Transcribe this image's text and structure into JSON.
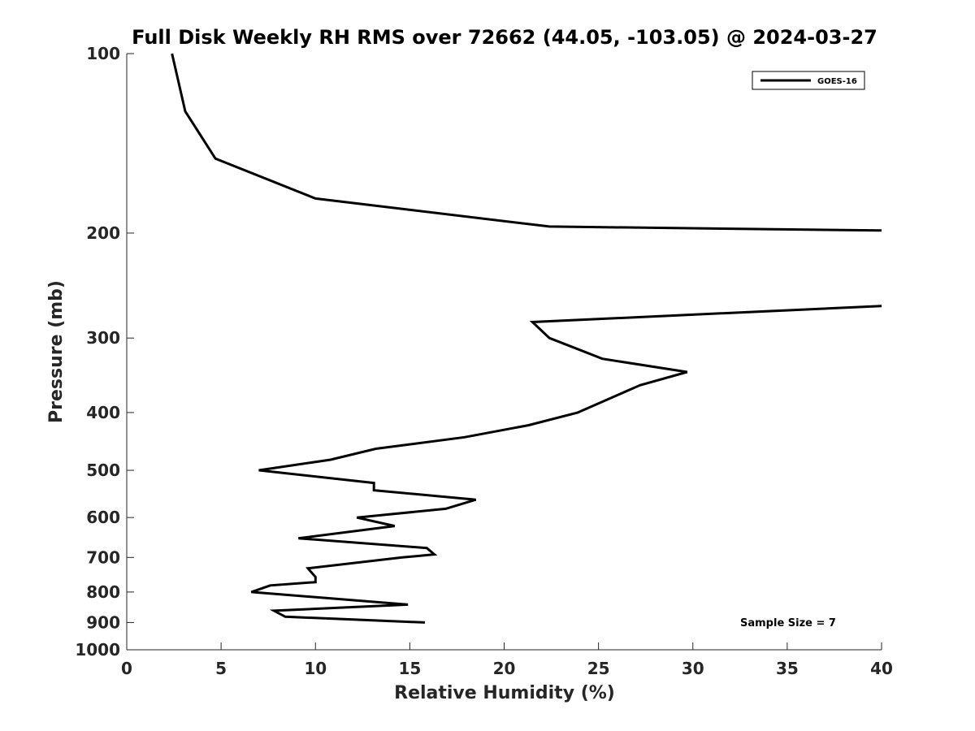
{
  "chart_data": {
    "type": "line",
    "title": "Full Disk Weekly RH RMS over 72662 (44.05, -103.05) @ 2024-03-27",
    "xlabel": "Relative Humidity (%)",
    "ylabel": "Pressure (mb)",
    "xlim": [
      0,
      40
    ],
    "ylim": [
      100,
      1000
    ],
    "yscale": "log",
    "yreversed": true,
    "grid": false,
    "x_ticks": [
      0,
      5,
      10,
      15,
      20,
      25,
      30,
      35,
      40
    ],
    "x_tick_labels": [
      "0",
      "5",
      "10",
      "15",
      "20",
      "25",
      "30",
      "35",
      "40"
    ],
    "y_ticks": [
      100,
      200,
      300,
      400,
      500,
      600,
      700,
      800,
      900,
      1000
    ],
    "y_tick_labels": [
      "100",
      "200",
      "300",
      "400",
      "500",
      "600",
      "700",
      "800",
      "900",
      "1000"
    ],
    "legend": {
      "placement": "top-right",
      "entries": [
        "GOES-16"
      ]
    },
    "annotation": "Sample Size = 7",
    "series": [
      {
        "name": "GOES-16",
        "color": "#000000",
        "segments": [
          [
            [
              2.4,
              100
            ],
            [
              3.1,
              125
            ],
            [
              4.7,
              150
            ],
            [
              10.0,
              175
            ],
            [
              22.4,
              195
            ],
            [
              40.0,
              198
            ]
          ],
          [
            [
              40.0,
              265
            ],
            [
              21.5,
              282
            ],
            [
              22.4,
              300
            ],
            [
              25.2,
              325
            ],
            [
              29.7,
              342
            ],
            [
              27.2,
              360
            ],
            [
              23.9,
              400
            ],
            [
              21.3,
              420
            ],
            [
              17.9,
              440
            ],
            [
              13.2,
              460
            ],
            [
              10.8,
              480
            ],
            [
              7.0,
              500
            ],
            [
              13.1,
              525
            ],
            [
              13.1,
              540
            ],
            [
              18.5,
              560
            ],
            [
              16.9,
              580
            ],
            [
              12.2,
              600
            ],
            [
              14.2,
              620
            ],
            [
              9.1,
              650
            ],
            [
              15.9,
              675
            ],
            [
              16.3,
              692
            ],
            [
              14.6,
              700
            ],
            [
              9.6,
              730
            ],
            [
              10.0,
              755
            ],
            [
              10.0,
              770
            ],
            [
              7.6,
              780
            ],
            [
              6.6,
              800
            ],
            [
              14.9,
              840
            ],
            [
              7.8,
              860
            ],
            [
              8.4,
              880
            ],
            [
              15.8,
              900
            ]
          ]
        ]
      }
    ]
  }
}
